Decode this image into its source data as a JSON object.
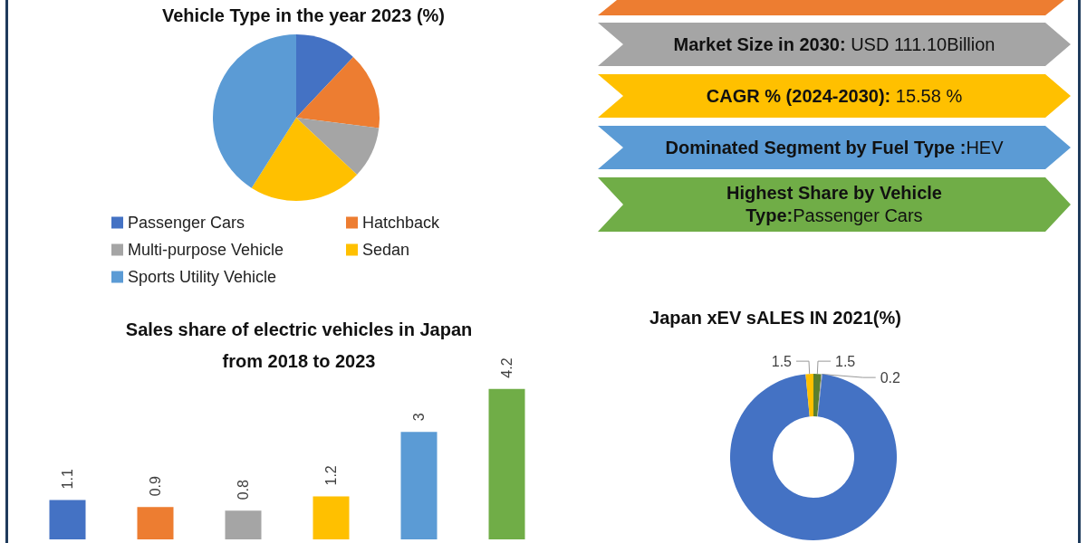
{
  "chart_data": [
    {
      "type": "pie",
      "title": "Vehicle Type in the year 2023 (%)",
      "categories": [
        "Passenger Cars",
        "Hatchback",
        "Multi-purpose Vehicle",
        "Sedan",
        "Sports Utility Vehicle"
      ],
      "values": [
        12,
        15,
        10,
        22,
        41
      ],
      "colors": [
        "#4472c4",
        "#ed7d31",
        "#a5a5a5",
        "#ffc000",
        "#5b9bd5"
      ],
      "legend": "bottom"
    },
    {
      "type": "other",
      "annotations": [
        "Market Size in 2030: USD 111.10Billion",
        "CAGR % (2024-2030): 15.58 %",
        "Dominated Segment by Fuel Type :HEV",
        "Highest Share by Vehicle\nType:Passenger Cars"
      ],
      "colors": [
        "#a5a5a5",
        "#ffc000",
        "#5b9bd5",
        "#70ad47"
      ]
    },
    {
      "type": "bar",
      "title": "Sales share of electric vehicles in Japan\nfrom 2018 to 2023",
      "categories": [
        null,
        null,
        null,
        null,
        null,
        null
      ],
      "values": [
        1.1,
        0.9,
        0.8,
        1.2,
        3,
        4.2
      ],
      "colors": [
        "#4472c4",
        "#ed7d31",
        "#a5a5a5",
        "#ffc000",
        "#5b9bd5",
        "#70ad47"
      ],
      "data_labels": true,
      "tick_labels": false
    },
    {
      "type": "donut",
      "title": "Japan xEV sALES IN 2021(%)",
      "categories": [
        null,
        null,
        null,
        null
      ],
      "values": [
        1.5,
        0.2,
        96.8,
        1.5
      ],
      "colors": [
        "#5b7f2e",
        "#a5a5a5",
        "#4472c4",
        "#ffc000"
      ],
      "value_labels": [
        "1.5",
        "0.2",
        null,
        "1.5"
      ]
    }
  ]
}
